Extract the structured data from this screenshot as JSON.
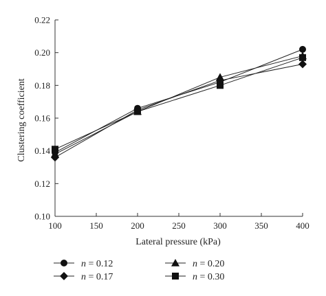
{
  "chart_data": {
    "type": "line",
    "xlabel": "Lateral pressure (kPa)",
    "ylabel": "Clustering coefficient",
    "x": [
      100,
      200,
      300,
      400
    ],
    "xlim": [
      100,
      400
    ],
    "ylim": [
      0.1,
      0.22
    ],
    "xticks": [
      "100",
      "150",
      "200",
      "250",
      "300",
      "350",
      "400"
    ],
    "yticks": [
      "0.10",
      "0.12",
      "0.14",
      "0.16",
      "0.18",
      "0.20",
      "0.22"
    ],
    "grid": false,
    "legend_position": "bottom",
    "series": [
      {
        "name": "n = 0.12",
        "var": "n",
        "value_label": " = 0.12",
        "marker": "circle",
        "values": [
          0.139,
          0.166,
          0.182,
          0.202
        ]
      },
      {
        "name": "n = 0.17",
        "var": "n",
        "value_label": " = 0.17",
        "marker": "diamond",
        "values": [
          0.136,
          0.165,
          0.183,
          0.193
        ]
      },
      {
        "name": "n = 0.20",
        "var": "n",
        "value_label": " = 0.20",
        "marker": "triangle",
        "values": [
          0.138,
          0.164,
          0.185,
          0.198
        ]
      },
      {
        "name": "n = 0.30",
        "var": "n",
        "value_label": " = 0.30",
        "marker": "square",
        "values": [
          0.141,
          0.164,
          0.18,
          0.197
        ]
      }
    ],
    "colors": {
      "line": "#222222",
      "marker": "#111111",
      "axis": "#333333"
    }
  }
}
